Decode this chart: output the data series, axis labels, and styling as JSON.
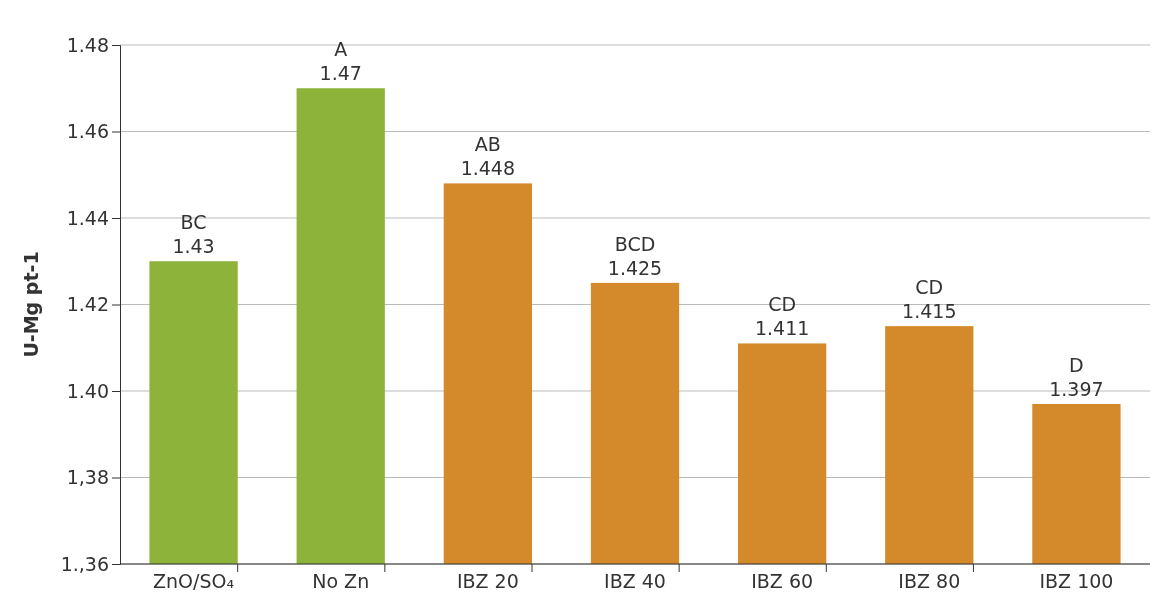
{
  "chart_data": {
    "type": "bar",
    "ylabel": "U-Mg pt-1",
    "categories": [
      "ZnO/SO₄",
      "No Zn",
      "IBZ 20",
      "IBZ 40",
      "IBZ 60",
      "IBZ 80",
      "IBZ 100"
    ],
    "values": [
      1.43,
      1.47,
      1.448,
      1.425,
      1.411,
      1.415,
      1.397
    ],
    "colors": [
      "#8db33a",
      "#8db33a",
      "#d4892a",
      "#d4892a",
      "#d4892a",
      "#d4892a",
      "#d4892a"
    ],
    "ylim": [
      1.36,
      1.48
    ],
    "yticks": [
      {
        "value": 1.36,
        "label": "1.,36"
      },
      {
        "value": 1.38,
        "label": "1,38"
      },
      {
        "value": 1.4,
        "label": "1.40"
      },
      1.42,
      1.44,
      1.46,
      1.48
    ],
    "grid": "y",
    "data_labels": true,
    "annotations": [
      {
        "text": "BC",
        "x": "ZnO/SO₄",
        "y": 1.43
      },
      {
        "text": "A",
        "x": "No Zn",
        "y": 1.47
      },
      {
        "text": "AB",
        "x": "IBZ 20",
        "y": 1.448
      },
      {
        "text": "BCD",
        "x": "IBZ 40",
        "y": 1.425
      },
      {
        "text": "CD",
        "x": "IBZ 60",
        "y": 1.411
      },
      {
        "text": "CD",
        "x": "IBZ 80",
        "y": 1.415
      },
      {
        "text": "D",
        "x": "IBZ 100",
        "y": 1.397
      }
    ]
  }
}
